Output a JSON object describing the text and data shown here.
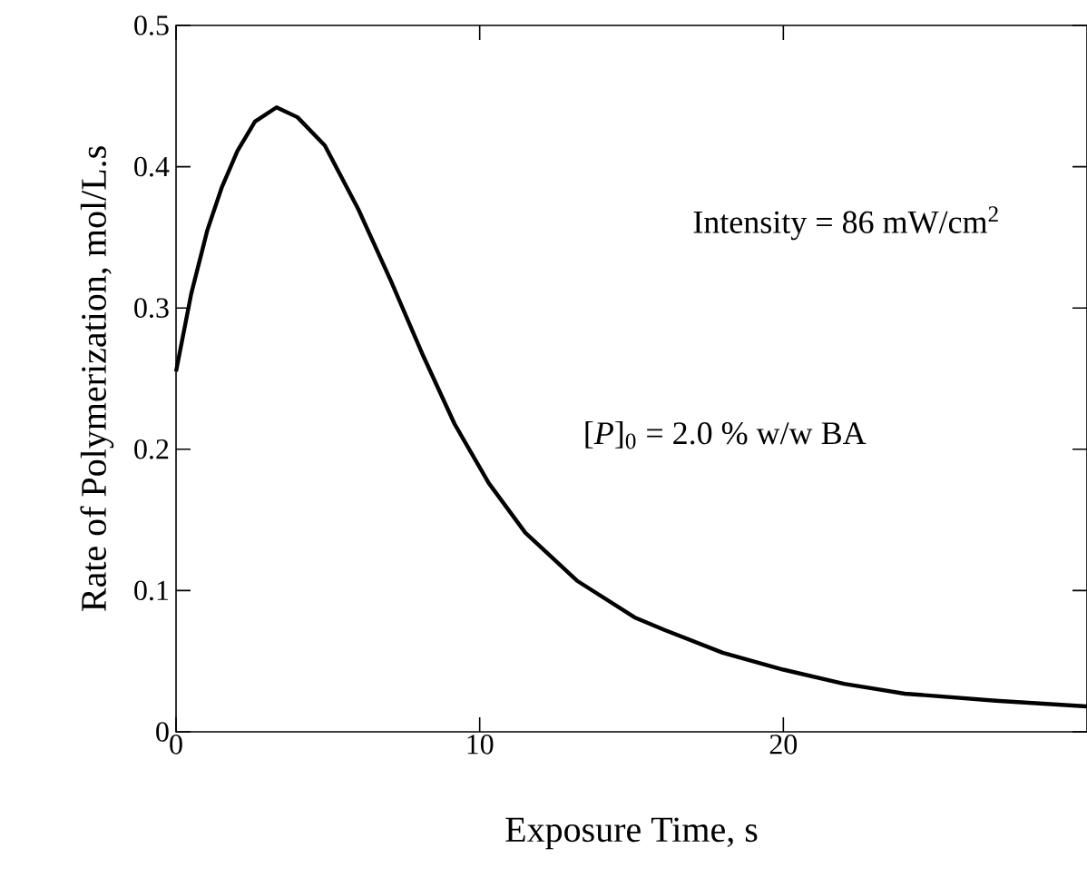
{
  "chart_data": {
    "type": "line",
    "xlabel": "Exposure Time, s",
    "ylabel": "Rate of Polymerization, mol/L.s",
    "x": [
      0,
      0.5,
      1.03,
      1.5,
      2.02,
      2.6,
      3.31,
      4.0,
      4.9,
      6.0,
      7.08,
      8.1,
      9.17,
      10.3,
      11.5,
      13.2,
      15.1,
      16.1,
      18,
      20,
      22,
      24,
      27,
      30
    ],
    "values": [
      0.255,
      0.31,
      0.355,
      0.385,
      0.411,
      0.432,
      0.442,
      0.435,
      0.415,
      0.37,
      0.319,
      0.268,
      0.218,
      0.176,
      0.141,
      0.107,
      0.081,
      0.072,
      0.056,
      0.044,
      0.034,
      0.027,
      0.022,
      0.018
    ],
    "color": "#000000",
    "xlim": [
      0,
      30
    ],
    "ylim": [
      0,
      0.5
    ],
    "xticks": [
      0,
      10,
      20
    ],
    "yticks": [
      0,
      0.1,
      0.2,
      0.3,
      0.4,
      0.5
    ],
    "grid": false,
    "marker": "none",
    "line_style": "solid",
    "annotations": [
      "Intensity = 86 mW/cm$^{2}$",
      "[*P*]$_{0}$ = 2.0 % w/w BA"
    ]
  }
}
